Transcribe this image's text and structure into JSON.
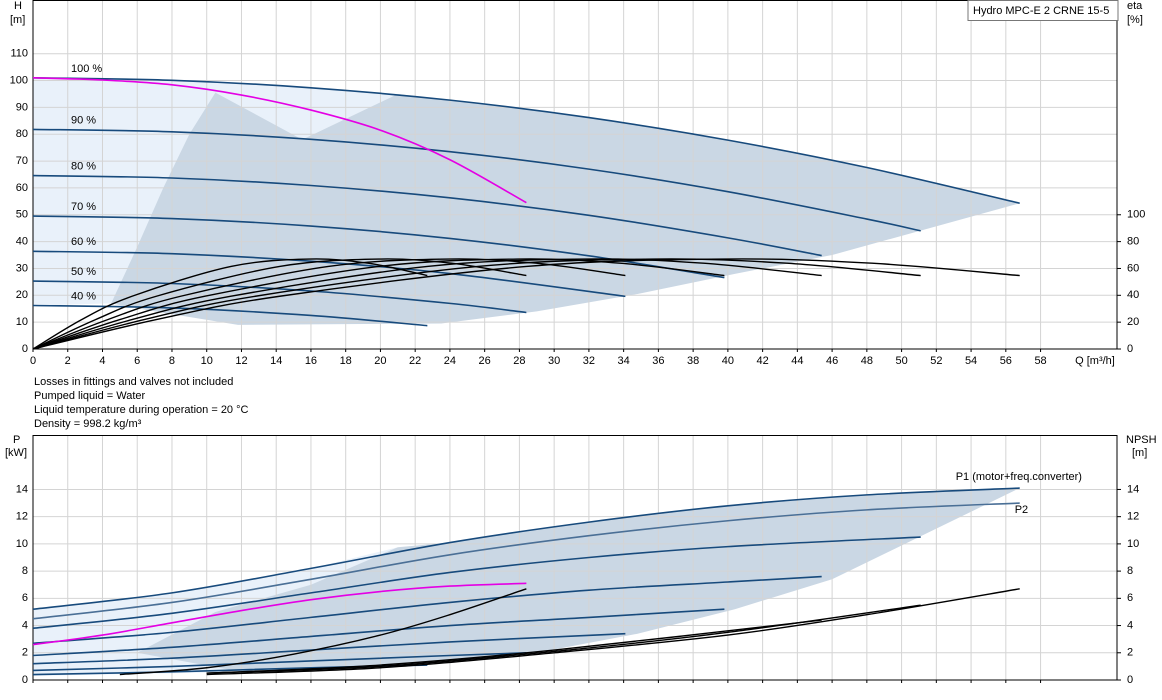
{
  "chart_data": [
    {
      "type": "line",
      "title": "Hydro MPC-E 2 CRNE 15-5",
      "y_label": "H",
      "y_unit": "[m]",
      "y2_label": "eta",
      "y2_unit": "[%]",
      "x_label": "Q [m³/h]",
      "xlim": [
        0,
        62.4
      ],
      "xticks": [
        0,
        2,
        4,
        6,
        8,
        10,
        12,
        14,
        16,
        18,
        20,
        22,
        24,
        26,
        28,
        30,
        32,
        34,
        36,
        38,
        40,
        42,
        44,
        46,
        48,
        50,
        52,
        54,
        56,
        58
      ],
      "ylim": [
        0,
        130
      ],
      "yticks": [
        0,
        10,
        20,
        30,
        40,
        50,
        60,
        70,
        80,
        90,
        100,
        110
      ],
      "y2lim": [
        0,
        260
      ],
      "y2ticks": [
        0,
        20,
        40,
        60,
        80,
        100
      ],
      "grid": true,
      "notes": [
        "Losses in fittings and valves not included",
        "Pumped liquid = Water",
        "Liquid temperature during operation = 20 °C",
        "Density = 998.2 kg/m³"
      ],
      "areas": [
        {
          "color": "#e9f1fa",
          "x": [
            0,
            8,
            16,
            21,
            15.5,
            4.5,
            0
          ],
          "y": [
            101,
            100.1,
            97.3,
            95,
            78,
            17,
            16.2
          ]
        },
        {
          "color": "#cad7e4",
          "x": [
            10.5,
            15.5,
            21,
            24,
            32,
            40,
            48,
            56.8,
            46,
            40.4,
            34.8,
            29,
            23.5,
            11.8,
            7,
            4.5,
            6,
            7.5,
            9
          ],
          "y": [
            95.5,
            78,
            95,
            92.7,
            86.2,
            77.8,
            67.6,
            54.3,
            35,
            28,
            20.5,
            14,
            9.5,
            9,
            14,
            17,
            38,
            60,
            80
          ]
        }
      ],
      "series": [
        {
          "name": "100 %",
          "color": "#174a7c",
          "x": [
            0,
            8,
            16,
            24,
            32,
            40,
            48,
            56.8
          ],
          "values": [
            101,
            100.1,
            97.3,
            92.7,
            86.2,
            77.8,
            67.6,
            54.3
          ]
        },
        {
          "name": "90 %",
          "color": "#174a7c",
          "x": [
            0,
            8,
            16,
            24,
            32,
            40,
            48,
            51.1
          ],
          "values": [
            81.8,
            80.9,
            78.1,
            73.5,
            67,
            58.6,
            48.4,
            44
          ]
        },
        {
          "name": "80 %",
          "color": "#174a7c",
          "x": [
            0,
            8,
            16,
            24,
            32,
            40,
            45.4
          ],
          "values": [
            64.6,
            63.7,
            60.9,
            56.3,
            49.8,
            41.4,
            34.8
          ]
        },
        {
          "name": "70 %",
          "color": "#174a7c",
          "x": [
            0,
            8,
            16,
            24,
            32,
            39.8
          ],
          "values": [
            49.5,
            48.6,
            45.8,
            41.2,
            34.7,
            26.6
          ]
        },
        {
          "name": "60 %",
          "color": "#174a7c",
          "x": [
            0,
            8,
            16,
            24,
            34.1
          ],
          "values": [
            36.4,
            35.5,
            32.7,
            28.1,
            19.6
          ]
        },
        {
          "name": "50 %",
          "color": "#174a7c",
          "x": [
            0,
            8,
            16,
            24,
            28.4
          ],
          "values": [
            25.3,
            24.4,
            21.6,
            17,
            13.6
          ]
        },
        {
          "name": "40 %",
          "color": "#174a7c",
          "x": [
            0,
            8,
            16,
            22.7
          ],
          "values": [
            16.2,
            15.3,
            12.5,
            8.7
          ]
        },
        {
          "color": "#e400e4",
          "x": [
            0,
            4,
            8,
            12,
            16,
            20,
            24,
            28.4
          ],
          "values": [
            101,
            100.2,
            98.4,
            94.6,
            89,
            81.5,
            70.5,
            54.5
          ]
        },
        {
          "color": "#000000",
          "axis": "y2",
          "x": [
            0,
            7.1,
            14.2,
            28.4,
            39.8,
            48.3,
            56.8
          ],
          "values": [
            0,
            21.9,
            39.3,
            61.5,
            67,
            63.9,
            54.7
          ]
        },
        {
          "color": "#000000",
          "axis": "y2",
          "x": [
            0,
            6.4,
            12.8,
            25.6,
            35.8,
            43.4,
            51.1
          ],
          "values": [
            0,
            21.9,
            39.3,
            61.5,
            67,
            63.9,
            54.7
          ]
        },
        {
          "color": "#000000",
          "axis": "y2",
          "x": [
            0,
            5.7,
            11.4,
            22.7,
            31.8,
            38.6,
            45.4
          ],
          "values": [
            0,
            21.9,
            39.3,
            61.5,
            67,
            63.9,
            54.7
          ]
        },
        {
          "color": "#000000",
          "axis": "y2",
          "x": [
            0,
            5,
            9.9,
            19.9,
            27.9,
            33.8,
            39.8
          ],
          "values": [
            0,
            21.9,
            39.3,
            61.5,
            67,
            63.9,
            54.7
          ]
        },
        {
          "color": "#000000",
          "axis": "y2",
          "x": [
            0,
            4.3,
            8.5,
            17,
            23.9,
            29,
            34.1
          ],
          "values": [
            0,
            21.9,
            39.3,
            61.5,
            67,
            63.9,
            54.7
          ]
        },
        {
          "color": "#000000",
          "axis": "y2",
          "x": [
            0,
            3.6,
            7.1,
            14.2,
            19.9,
            24.1,
            28.4
          ],
          "values": [
            0,
            21.9,
            39.3,
            61.5,
            67,
            63.9,
            54.7
          ]
        },
        {
          "color": "#000000",
          "axis": "y2",
          "x": [
            0,
            2.8,
            5.7,
            11.4,
            15.9,
            19.3,
            22.7
          ],
          "values": [
            0,
            21.9,
            39.3,
            61.5,
            67,
            63.9,
            54.7
          ]
        }
      ]
    },
    {
      "type": "line",
      "y_label": "P",
      "y_unit": "[kW]",
      "y2_label": "NPSH",
      "y2_unit": "[m]",
      "xlim": [
        0,
        62.4
      ],
      "xticks": [
        0,
        2,
        4,
        6,
        8,
        10,
        12,
        14,
        16,
        18,
        20,
        22,
        24,
        26,
        28,
        30,
        32,
        34,
        36,
        38,
        40,
        42,
        44,
        46,
        48,
        50,
        52,
        54,
        56,
        58
      ],
      "ylim": [
        0,
        18
      ],
      "yticks": [
        0,
        2,
        4,
        6,
        8,
        10,
        12,
        14
      ],
      "y2lim": [
        0,
        18
      ],
      "y2ticks": [
        0,
        2,
        4,
        6,
        8,
        10,
        12,
        14
      ],
      "grid": true,
      "areas": [
        {
          "color": "#e9f1fa",
          "x": [
            0,
            8,
            16,
            21,
            12,
            0
          ],
          "y": [
            5.2,
            6.4,
            8.2,
            9.75,
            0.6,
            0.3
          ]
        },
        {
          "color": "#cad7e4",
          "x": [
            10.5,
            16,
            21,
            24,
            32,
            40,
            48,
            56.8,
            46,
            40.4,
            34.8,
            29,
            23.5,
            12,
            6
          ],
          "y": [
            5,
            7,
            9.75,
            10.1,
            11.6,
            12.8,
            13.6,
            14.1,
            7.4,
            5.2,
            3.4,
            2,
            1.2,
            0.6,
            2
          ]
        }
      ],
      "series": [
        {
          "name": "P1 (motor+freq.converter)",
          "color": "#174a7c",
          "x": [
            0,
            8,
            16,
            24,
            32,
            40,
            48,
            56.8
          ],
          "values": [
            5.2,
            6.4,
            8.2,
            10.1,
            11.6,
            12.8,
            13.6,
            14.1
          ]
        },
        {
          "name": "P2",
          "color": "#4a6f96",
          "x": [
            0,
            8,
            16,
            24,
            32,
            40,
            48,
            56.8
          ],
          "values": [
            4.5,
            5.7,
            7.4,
            9.2,
            10.6,
            11.7,
            12.5,
            13
          ]
        },
        {
          "color": "#174a7c",
          "x": [
            0,
            8,
            16,
            24,
            32,
            40,
            51.1
          ],
          "values": [
            3.8,
            4.9,
            6.4,
            7.9,
            9,
            9.8,
            10.5
          ]
        },
        {
          "color": "#174a7c",
          "x": [
            0,
            8,
            16,
            24,
            32,
            40,
            45.4
          ],
          "values": [
            2.7,
            3.5,
            4.6,
            5.7,
            6.6,
            7.2,
            7.6
          ]
        },
        {
          "color": "#174a7c",
          "x": [
            0,
            8,
            16,
            24,
            32,
            39.8
          ],
          "values": [
            1.8,
            2.4,
            3.2,
            4,
            4.6,
            5.2
          ]
        },
        {
          "color": "#174a7c",
          "x": [
            0,
            8,
            16,
            24,
            34.1
          ],
          "values": [
            1.2,
            1.6,
            2.2,
            2.8,
            3.4
          ]
        },
        {
          "color": "#174a7c",
          "x": [
            0,
            8,
            16,
            24,
            28.4
          ],
          "values": [
            0.7,
            1,
            1.4,
            1.8,
            2
          ]
        },
        {
          "color": "#174a7c",
          "x": [
            0,
            8,
            16,
            22.7
          ],
          "values": [
            0.4,
            0.6,
            0.9,
            1.1
          ]
        },
        {
          "color": "#e400e4",
          "x": [
            0,
            4,
            8,
            12,
            16,
            20,
            24,
            28.4
          ],
          "values": [
            2.6,
            3.3,
            4.2,
            5.1,
            5.9,
            6.5,
            6.9,
            7.1
          ]
        },
        {
          "color": "#000000",
          "axis": "y2",
          "x": [
            10,
            20,
            30,
            40,
            48,
            56.8
          ],
          "values": [
            0.4,
            0.9,
            2,
            3.3,
            4.8,
            6.7
          ]
        },
        {
          "color": "#000000",
          "axis": "y2",
          "x": [
            10,
            20,
            30,
            40,
            51.1
          ],
          "values": [
            0.5,
            1,
            2.1,
            3.5,
            5.5
          ]
        },
        {
          "color": "#000000",
          "axis": "y2",
          "x": [
            10,
            20,
            30,
            45.4
          ],
          "values": [
            0.5,
            1.1,
            2.2,
            4.4
          ]
        },
        {
          "color": "#000000",
          "axis": "y2",
          "x": [
            5,
            10,
            15,
            20,
            24,
            28.4
          ],
          "values": [
            0.4,
            0.9,
            1.9,
            3.3,
            4.8,
            6.7
          ]
        }
      ]
    }
  ]
}
